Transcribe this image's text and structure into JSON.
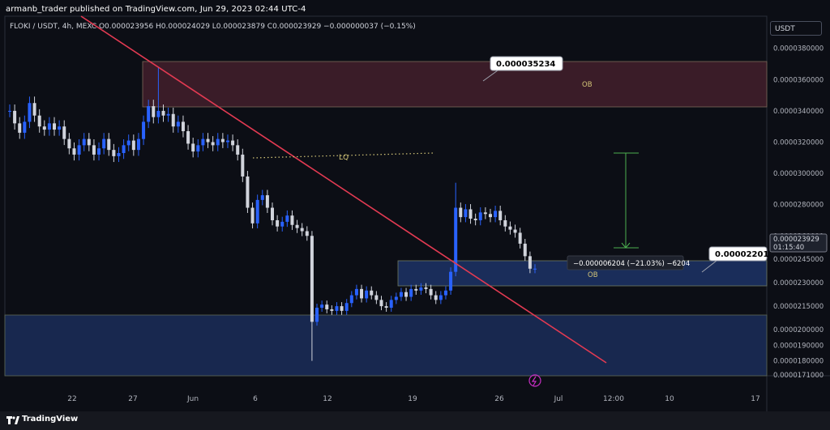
{
  "header": {
    "published": "armanb_trader published on TradingView.com, Jun 29, 2023 02:44 UTC-4"
  },
  "legend": {
    "text": "FLOKI / USDT, 4h, MEXC  O0.000023956 H0.000024029 L0.000023879 C0.000023929 −0.000000037 (−0.15%)"
  },
  "currency_button": "USDT",
  "footer": {
    "brand": "TradingView"
  },
  "chart_data": {
    "type": "candlestick",
    "symbol": "FLOKI / USDT",
    "timeframe": "4h",
    "exchange": "MEXC",
    "y_axis": {
      "ticks": [
        "0.0000380000",
        "0.0000360000",
        "0.0000340000",
        "0.0000320000",
        "0.0000300000",
        "0.0000280000",
        "0.0000260000",
        "0.0000245000",
        "0.0000230000",
        "0.0000215000",
        "0.0000200000",
        "0.0000190000",
        "0.0000180000",
        "0.0000171000"
      ]
    },
    "x_axis": {
      "ticks": [
        "22",
        "27",
        "Jun",
        "6",
        "12",
        "19",
        "26",
        "Jul",
        "12:00",
        "10",
        "17"
      ]
    },
    "series_close": [
      3.4e-05,
      3.32e-05,
      3.26e-05,
      3.33e-05,
      3.45e-05,
      3.37e-05,
      3.3e-05,
      3.28e-05,
      3.32e-05,
      3.28e-05,
      3.3e-05,
      3.22e-05,
      3.16e-05,
      3.12e-05,
      3.18e-05,
      3.22e-05,
      3.18e-05,
      3.12e-05,
      3.16e-05,
      3.22e-05,
      3.15e-05,
      3.11e-05,
      3.13e-05,
      3.18e-05,
      3.21e-05,
      3.15e-05,
      3.22e-05,
      3.33e-05,
      3.43e-05,
      3.36e-05,
      3.4e-05,
      3.37e-05,
      3.38e-05,
      3.3e-05,
      3.33e-05,
      3.27e-05,
      3.19e-05,
      3.14e-05,
      3.18e-05,
      3.22e-05,
      3.2e-05,
      3.18e-05,
      3.22e-05,
      3.2e-05,
      3.21e-05,
      3.18e-05,
      3.12e-05,
      2.98e-05,
      2.78e-05,
      2.68e-05,
      2.83e-05,
      2.86e-05,
      2.78e-05,
      2.7e-05,
      2.66e-05,
      2.69e-05,
      2.73e-05,
      2.67e-05,
      2.65e-05,
      2.63e-05,
      2.6e-05,
      2.05e-05,
      2.14e-05,
      2.16e-05,
      2.13e-05,
      2.12e-05,
      2.15e-05,
      2.12e-05,
      2.17e-05,
      2.22e-05,
      2.26e-05,
      2.2e-05,
      2.25e-05,
      2.22e-05,
      2.19e-05,
      2.15e-05,
      2.14e-05,
      2.19e-05,
      2.21e-05,
      2.24e-05,
      2.21e-05,
      2.26e-05,
      2.25e-05,
      2.27e-05,
      2.26e-05,
      2.22e-05,
      2.19e-05,
      2.22e-05,
      2.25e-05,
      2.37e-05,
      2.78e-05,
      2.72e-05,
      2.77e-05,
      2.71e-05,
      2.7e-05,
      2.75e-05,
      2.74e-05,
      2.72e-05,
      2.76e-05,
      2.7e-05,
      2.66e-05,
      2.64e-05,
      2.62e-05,
      2.55e-05,
      2.47e-05,
      2.39e-05,
      2.39e-05
    ],
    "last_price": "0.000023929",
    "countdown": "01:15:40",
    "annotations": {
      "target_label": "0.000035234",
      "cursor_label": "0.00002201",
      "measure_label": "−0.000006204 (−21.03%) −6204",
      "zones": [
        {
          "label": "OB",
          "from": 3.3e-05,
          "to": 3.7e-05
        },
        {
          "label": "OB",
          "from": 2.14e-05,
          "to": 2.25e-05
        },
        {
          "label": "",
          "from": 1.71e-05,
          "to": 1.97e-05
        }
      ],
      "liquidity_label": "LQ"
    }
  },
  "colors": {
    "background": "#0c0e15",
    "candle_up": "#2962ff",
    "candle_down": "#d1d4dc",
    "trendline": "#e23a52",
    "ob_red_zone": "#3a1c28",
    "ob_blue_zone": "#1a2d5a",
    "measure": "#4caf50",
    "lq": "#d4c678"
  }
}
